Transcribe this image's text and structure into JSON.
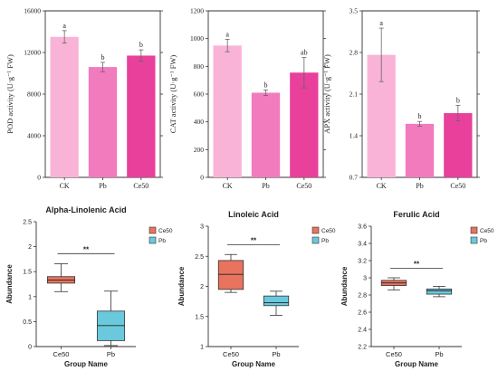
{
  "chart_data": [
    {
      "type": "bar",
      "ylabel": "POD activity (U·g⁻¹ FW)",
      "ylim": [
        0,
        16000
      ],
      "yticks": [
        0,
        4000,
        8000,
        12000,
        16000
      ],
      "categories": [
        "CK",
        "Pb",
        "Ce50"
      ],
      "values": [
        13500,
        10600,
        11700
      ],
      "errors": [
        600,
        450,
        550
      ],
      "letters": [
        "a",
        "b",
        "b"
      ],
      "colors": [
        "#f9b3d6",
        "#f17bbd",
        "#e8409b"
      ]
    },
    {
      "type": "bar",
      "ylabel": "CAT activity (U·g⁻¹ FW)",
      "ylim": [
        0,
        1200
      ],
      "yticks": [
        0,
        200,
        400,
        600,
        800,
        1000,
        1200
      ],
      "categories": [
        "CK",
        "Pb",
        "Ce50"
      ],
      "values": [
        950,
        610,
        755
      ],
      "errors": [
        45,
        20,
        110
      ],
      "letters": [
        "a",
        "b",
        "ab"
      ],
      "colors": [
        "#f9b3d6",
        "#f17bbd",
        "#e8409b"
      ]
    },
    {
      "type": "bar",
      "ylabel": "APX activity (U·g⁻¹ FW)",
      "ylim": [
        0.7,
        3.5
      ],
      "yticks": [
        0.7,
        1.4,
        2.1,
        2.8,
        3.5
      ],
      "categories": [
        "CK",
        "Pb",
        "Ce50"
      ],
      "values": [
        2.76,
        1.6,
        1.78
      ],
      "errors": [
        0.45,
        0.04,
        0.13
      ],
      "letters": [
        "a",
        "b",
        "b"
      ],
      "colors": [
        "#f9b3d6",
        "#f17bbd",
        "#e8409b"
      ]
    },
    {
      "type": "box",
      "title": "Alpha-Linolenic Acid",
      "xlabel": "Group Name",
      "ylabel": "Abundance",
      "ylim": [
        0,
        2.5
      ],
      "yticks": [
        0,
        0.5,
        1,
        1.5,
        2,
        2.5
      ],
      "categories": [
        "Ce50",
        "Pb"
      ],
      "boxes": [
        {
          "min": 1.1,
          "q1": 1.27,
          "median": 1.33,
          "q3": 1.4,
          "max": 1.66
        },
        {
          "min": 0.02,
          "q1": 0.12,
          "median": 0.42,
          "q3": 0.71,
          "max": 1.11
        }
      ],
      "colors": [
        "#e8735e",
        "#6ac9dd"
      ],
      "significance": "**",
      "legend": [
        "Ce50",
        "Pb"
      ]
    },
    {
      "type": "box",
      "title": "Linoleic Acid",
      "xlabel": "Group Name",
      "ylabel": "Abundance",
      "ylim": [
        1,
        3
      ],
      "yticks": [
        1,
        1.5,
        2,
        2.5,
        3
      ],
      "categories": [
        "Ce50",
        "Pb"
      ],
      "boxes": [
        {
          "min": 1.9,
          "q1": 1.95,
          "median": 2.2,
          "q3": 2.43,
          "max": 2.53
        },
        {
          "min": 1.52,
          "q1": 1.68,
          "median": 1.73,
          "q3": 1.84,
          "max": 1.92
        }
      ],
      "colors": [
        "#e8735e",
        "#6ac9dd"
      ],
      "significance": "**",
      "legend": [
        "Ce50",
        "Pb"
      ]
    },
    {
      "type": "box",
      "title": "Ferulic Acid",
      "xlabel": "Group Name",
      "ylabel": "Abundance",
      "ylim": [
        2.2,
        3.6
      ],
      "yticks": [
        2.2,
        2.4,
        2.6,
        2.8,
        3,
        3.2,
        3.4,
        3.6
      ],
      "categories": [
        "Ce50",
        "Pb"
      ],
      "boxes": [
        {
          "min": 2.86,
          "q1": 2.91,
          "median": 2.94,
          "q3": 2.97,
          "max": 3.0
        },
        {
          "min": 2.78,
          "q1": 2.81,
          "median": 2.85,
          "q3": 2.87,
          "max": 2.9
        }
      ],
      "colors": [
        "#e8735e",
        "#6ac9dd"
      ],
      "significance": "**",
      "legend": [
        "Ce50",
        "Pb"
      ]
    }
  ]
}
